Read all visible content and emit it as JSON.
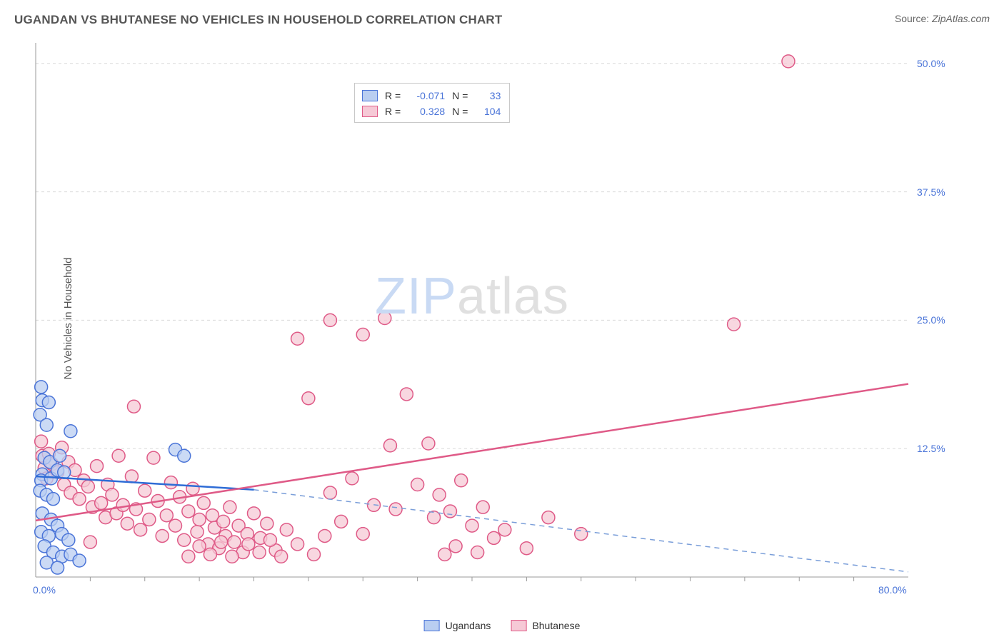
{
  "header": {
    "title": "UGANDAN VS BHUTANESE NO VEHICLES IN HOUSEHOLD CORRELATION CHART",
    "source_label": "Source:",
    "source_name": "ZipAtlas.com"
  },
  "watermark": {
    "part1": "ZIP",
    "part2": "atlas"
  },
  "chart": {
    "type": "scatter",
    "ylabel": "No Vehicles in Household",
    "xlim": [
      0,
      80
    ],
    "ylim": [
      0,
      52
    ],
    "xtick_labels": [
      "0.0%",
      "80.0%"
    ],
    "xtick_positions": [
      0,
      80
    ],
    "xtick_minor": [
      5,
      10,
      15,
      20,
      25,
      30,
      35,
      40,
      45,
      50,
      55,
      60,
      65,
      70,
      75
    ],
    "ytick_labels": [
      "12.5%",
      "25.0%",
      "37.5%",
      "50.0%"
    ],
    "ytick_positions": [
      12.5,
      25,
      37.5,
      50
    ],
    "background_color": "#ffffff",
    "grid_color": "#d9d9d9",
    "axis_color": "#9a9a9a",
    "marker_radius": 9,
    "marker_stroke_width": 1.5,
    "series": {
      "ugandans": {
        "label": "Ugandans",
        "fill": "#b9cef1",
        "stroke": "#4a74d8",
        "trend_color": "#2e6cd6",
        "trend_dash_color": "#7a9ed9",
        "r_value": "-0.071",
        "n_value": "33",
        "trend": {
          "x1": 0,
          "y1": 9.8,
          "x2": 20,
          "y2": 8.5,
          "dash_x2": 80,
          "dash_y2": 0.5
        },
        "points": [
          [
            0.5,
            18.5
          ],
          [
            0.6,
            17.2
          ],
          [
            0.4,
            15.8
          ],
          [
            1.2,
            17.0
          ],
          [
            1.0,
            14.8
          ],
          [
            0.8,
            11.6
          ],
          [
            1.3,
            11.2
          ],
          [
            3.2,
            14.2
          ],
          [
            0.6,
            10.0
          ],
          [
            0.5,
            9.4
          ],
          [
            1.4,
            9.6
          ],
          [
            2.0,
            10.4
          ],
          [
            2.6,
            10.2
          ],
          [
            0.4,
            8.4
          ],
          [
            1.0,
            8.0
          ],
          [
            1.6,
            7.6
          ],
          [
            2.2,
            11.8
          ],
          [
            0.6,
            6.2
          ],
          [
            1.4,
            5.6
          ],
          [
            2.0,
            5.0
          ],
          [
            0.5,
            4.4
          ],
          [
            1.2,
            4.0
          ],
          [
            2.4,
            4.2
          ],
          [
            3.0,
            3.6
          ],
          [
            0.8,
            3.0
          ],
          [
            1.6,
            2.4
          ],
          [
            2.4,
            2.0
          ],
          [
            3.2,
            2.2
          ],
          [
            4.0,
            1.6
          ],
          [
            1.0,
            1.4
          ],
          [
            2.0,
            0.9
          ],
          [
            12.8,
            12.4
          ],
          [
            13.6,
            11.8
          ]
        ]
      },
      "bhutanese": {
        "label": "Bhutanese",
        "fill": "#f6c9d6",
        "stroke": "#df5a87",
        "trend_color": "#df5a87",
        "r_value": "0.328",
        "n_value": "104",
        "trend": {
          "x1": 0,
          "y1": 5.5,
          "x2": 80,
          "y2": 18.8
        },
        "points": [
          [
            0.5,
            13.2
          ],
          [
            0.6,
            11.8
          ],
          [
            0.8,
            10.6
          ],
          [
            1.2,
            12.0
          ],
          [
            1.0,
            9.6
          ],
          [
            1.5,
            11.0
          ],
          [
            2.0,
            10.2
          ],
          [
            2.4,
            12.6
          ],
          [
            2.6,
            9.0
          ],
          [
            3.0,
            11.2
          ],
          [
            3.2,
            8.2
          ],
          [
            3.6,
            10.4
          ],
          [
            4.0,
            7.6
          ],
          [
            4.4,
            9.4
          ],
          [
            4.8,
            8.8
          ],
          [
            5.2,
            6.8
          ],
          [
            5.6,
            10.8
          ],
          [
            6.0,
            7.2
          ],
          [
            6.4,
            5.8
          ],
          [
            6.6,
            9.0
          ],
          [
            7.0,
            8.0
          ],
          [
            7.4,
            6.2
          ],
          [
            7.6,
            11.8
          ],
          [
            8.0,
            7.0
          ],
          [
            8.4,
            5.2
          ],
          [
            8.8,
            9.8
          ],
          [
            9.2,
            6.6
          ],
          [
            9.6,
            4.6
          ],
          [
            10.0,
            8.4
          ],
          [
            10.4,
            5.6
          ],
          [
            10.8,
            11.6
          ],
          [
            11.2,
            7.4
          ],
          [
            11.6,
            4.0
          ],
          [
            12.0,
            6.0
          ],
          [
            12.4,
            9.2
          ],
          [
            12.8,
            5.0
          ],
          [
            13.2,
            7.8
          ],
          [
            13.6,
            3.6
          ],
          [
            14.0,
            6.4
          ],
          [
            14.4,
            8.6
          ],
          [
            14.8,
            4.4
          ],
          [
            15.0,
            5.6
          ],
          [
            15.4,
            7.2
          ],
          [
            15.8,
            3.2
          ],
          [
            16.2,
            6.0
          ],
          [
            16.4,
            4.8
          ],
          [
            16.8,
            2.8
          ],
          [
            17.2,
            5.4
          ],
          [
            17.4,
            4.0
          ],
          [
            17.8,
            6.8
          ],
          [
            18.2,
            3.4
          ],
          [
            18.6,
            5.0
          ],
          [
            19.0,
            2.4
          ],
          [
            19.4,
            4.2
          ],
          [
            20.0,
            6.2
          ],
          [
            20.6,
            3.8
          ],
          [
            21.2,
            5.2
          ],
          [
            22.0,
            2.6
          ],
          [
            23.0,
            4.6
          ],
          [
            9.0,
            16.6
          ],
          [
            24.0,
            23.2
          ],
          [
            25.0,
            17.4
          ],
          [
            27.0,
            25.0
          ],
          [
            30.0,
            23.6
          ],
          [
            32.0,
            25.2
          ],
          [
            32.5,
            12.8
          ],
          [
            33.0,
            6.6
          ],
          [
            34.0,
            17.8
          ],
          [
            35.0,
            9.0
          ],
          [
            36.0,
            13.0
          ],
          [
            36.5,
            5.8
          ],
          [
            37.0,
            8.0
          ],
          [
            37.5,
            2.2
          ],
          [
            38.0,
            6.4
          ],
          [
            38.5,
            3.0
          ],
          [
            39.0,
            9.4
          ],
          [
            40.0,
            5.0
          ],
          [
            40.5,
            2.4
          ],
          [
            41.0,
            6.8
          ],
          [
            42.0,
            3.8
          ],
          [
            27.0,
            8.2
          ],
          [
            28.0,
            5.4
          ],
          [
            29.0,
            9.6
          ],
          [
            30.0,
            4.2
          ],
          [
            31.0,
            7.0
          ],
          [
            43.0,
            4.6
          ],
          [
            45.0,
            2.8
          ],
          [
            47.0,
            5.8
          ],
          [
            50.0,
            4.2
          ],
          [
            14.0,
            2.0
          ],
          [
            15.0,
            3.0
          ],
          [
            16.0,
            2.2
          ],
          [
            17.0,
            3.4
          ],
          [
            18.0,
            2.0
          ],
          [
            19.5,
            3.2
          ],
          [
            20.5,
            2.4
          ],
          [
            21.5,
            3.6
          ],
          [
            22.5,
            2.0
          ],
          [
            24.0,
            3.2
          ],
          [
            25.5,
            2.2
          ],
          [
            26.5,
            4.0
          ],
          [
            64.0,
            24.6
          ],
          [
            69.0,
            50.2
          ],
          [
            5.0,
            3.4
          ]
        ]
      }
    }
  },
  "stat_legend": {
    "r_label": "R =",
    "n_label": "N ="
  },
  "bottom_legend": {
    "items": [
      "ugandans",
      "bhutanese"
    ]
  }
}
